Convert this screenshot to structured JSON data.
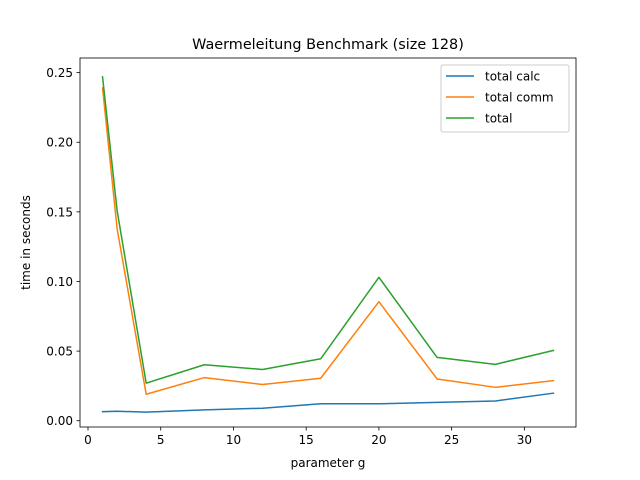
{
  "chart_data": {
    "type": "line",
    "title": "Waermeleitung Benchmark (size 128)",
    "xlabel": "parameter g",
    "ylabel": "time in seconds",
    "xlim": [
      -0.55,
      33.55
    ],
    "ylim": [
      -0.0045,
      0.2605
    ],
    "xticks": [
      0,
      5,
      10,
      15,
      20,
      25,
      30
    ],
    "xtick_labels": [
      "0",
      "5",
      "10",
      "15",
      "20",
      "25",
      "30"
    ],
    "yticks": [
      0.0,
      0.05,
      0.1,
      0.15,
      0.2,
      0.25
    ],
    "ytick_labels": [
      "0.00",
      "0.05",
      "0.10",
      "0.15",
      "0.20",
      "0.25"
    ],
    "grid": false,
    "legend_position": "top-right",
    "x": [
      1,
      2,
      4,
      8,
      12,
      16,
      20,
      24,
      28,
      32
    ],
    "series": [
      {
        "name": "total calc",
        "color": "#1f77b4",
        "values": [
          0.0065,
          0.0068,
          0.0062,
          0.0078,
          0.009,
          0.0122,
          0.0122,
          0.0132,
          0.0142,
          0.0198
        ]
      },
      {
        "name": "total comm",
        "color": "#ff7f0e",
        "values": [
          0.239,
          0.138,
          0.019,
          0.031,
          0.026,
          0.0305,
          0.0855,
          0.03,
          0.024,
          0.0288
        ]
      },
      {
        "name": "total",
        "color": "#2ca02c",
        "values": [
          0.247,
          0.151,
          0.027,
          0.0402,
          0.0368,
          0.0445,
          0.103,
          0.0455,
          0.0405,
          0.0505
        ]
      }
    ]
  }
}
